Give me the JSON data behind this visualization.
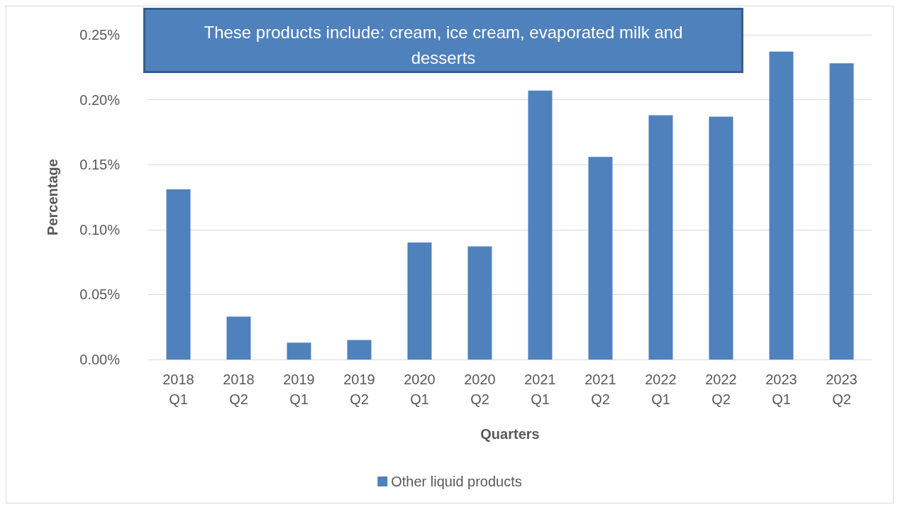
{
  "chart_data": {
    "type": "bar",
    "xlabel": "Quarters",
    "ylabel": "Percentage",
    "annotations": [
      "These products include: cream, ice cream, evaporated milk and desserts"
    ],
    "categories": [
      "2018 Q1",
      "2018 Q2",
      "2019 Q1",
      "2019 Q2",
      "2020 Q1",
      "2020 Q2",
      "2021 Q1",
      "2021 Q2",
      "2022 Q1",
      "2022 Q2",
      "2023 Q1",
      "2023 Q2"
    ],
    "series": [
      {
        "name": "Other liquid products",
        "color": "#4f81bd",
        "values": [
          0.131,
          0.033,
          0.013,
          0.015,
          0.09,
          0.087,
          0.207,
          0.156,
          0.188,
          0.187,
          0.237,
          0.228
        ]
      }
    ],
    "ylim": [
      0,
      0.25
    ],
    "yticks": [
      {
        "value": 0,
        "label": "0.00%"
      },
      {
        "value": 0.05,
        "label": "0.05%"
      },
      {
        "value": 0.1,
        "label": "0.10%"
      },
      {
        "value": 0.15,
        "label": "0.15%"
      },
      {
        "value": 0.2,
        "label": "0.20%"
      },
      {
        "value": 0.25,
        "label": "0.25%"
      }
    ],
    "grid": "y",
    "legend": "bottom"
  }
}
